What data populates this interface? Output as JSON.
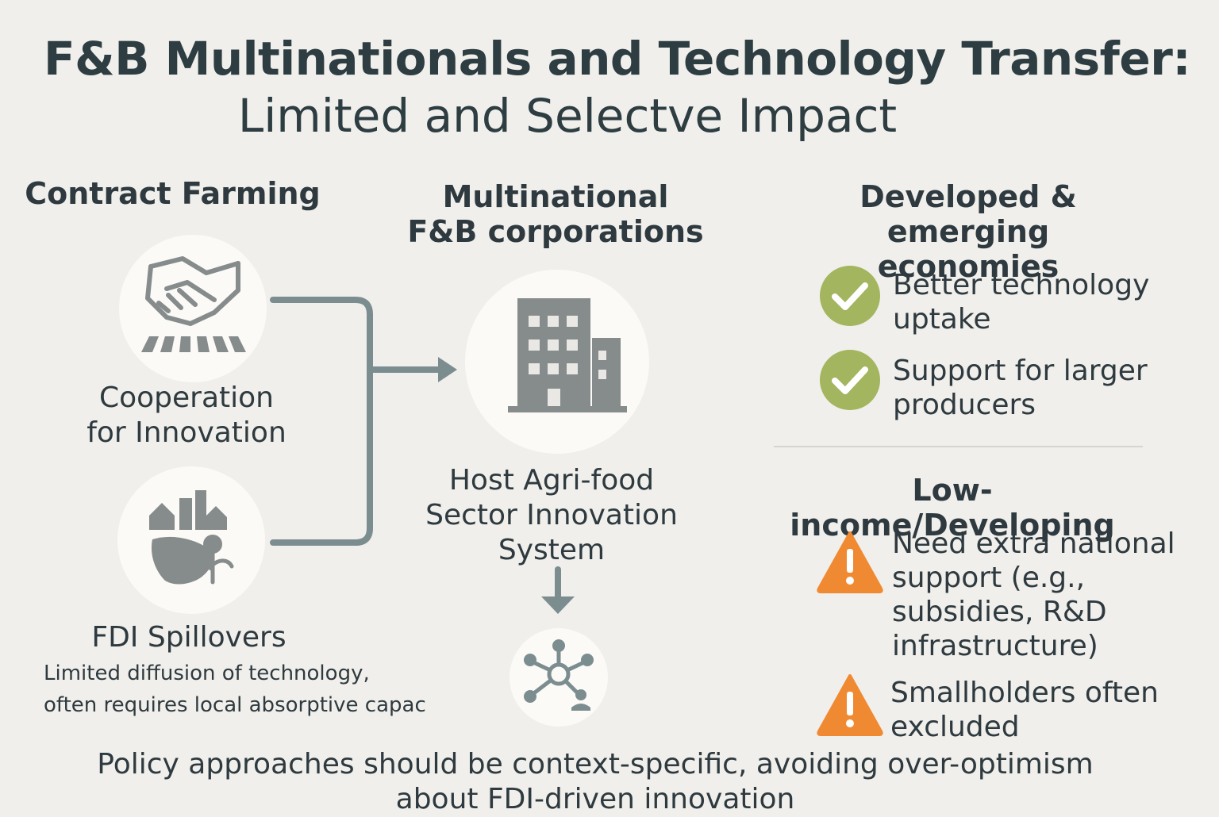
{
  "title": "F&B Multinationals and Technology Transfer:",
  "subtitle": "Limited and Selectve Impact",
  "left": {
    "heading": "Contract Farming",
    "cooperation": {
      "line1": "Cooperation",
      "line2": "for Innovation",
      "icon": "handshake-icon"
    },
    "spillovers": {
      "label": "FDI Spillovers",
      "desc_line1": "Limited diffusion of technology,",
      "desc_line2": "often requires local absorptive capac",
      "icon": "community-icon"
    }
  },
  "center": {
    "heading_line1": "Multinational",
    "heading_line2": "F&B corporations",
    "building_icon": "building-icon",
    "host_line1": "Host Agri-food",
    "host_line2": "Sector Innovation",
    "host_line3": "System",
    "network_icon": "network-icon"
  },
  "right": {
    "developed": {
      "heading_line1": "Developed & emerging",
      "heading_line2": "economies",
      "items": [
        {
          "line1": "Better technology",
          "line2": "uptake",
          "icon": "check-icon"
        },
        {
          "line1": "Support for larger",
          "line2": "producers",
          "icon": "check-icon"
        }
      ]
    },
    "low_income": {
      "heading": "Low-income/Developing",
      "items": [
        {
          "lines": [
            "Need extra national",
            "support (e.g.,",
            "subsidies, R&D",
            "infrastructure)"
          ],
          "icon": "warning-icon"
        },
        {
          "lines": [
            "Smallholders often",
            "excluded"
          ],
          "icon": "warning-icon"
        }
      ]
    }
  },
  "footer": {
    "line1": "Policy approaches should be context-specific, avoiding over-optimism",
    "line2": "about FDI-driven innovation"
  },
  "colors": {
    "background": "#f0efeb",
    "text": "#2e3a3f",
    "icon_gray": "#868b8c",
    "connector": "#7c8d90",
    "check_green": "#a3b55e",
    "warning_orange": "#f08a32"
  }
}
